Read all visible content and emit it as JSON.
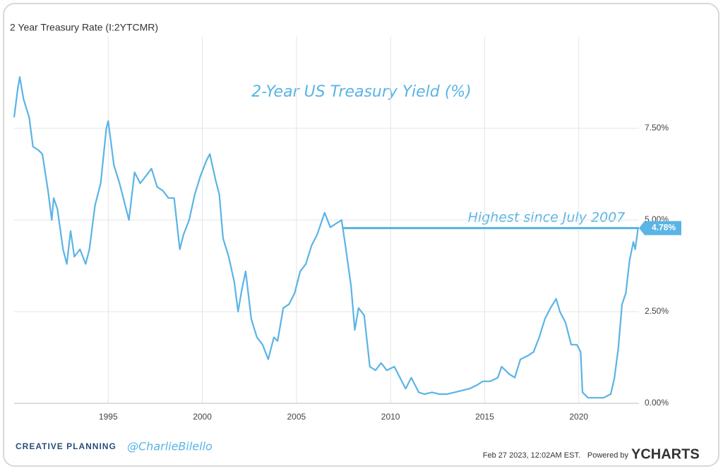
{
  "header": "2 Year Treasury Rate (I:2YTCMR)",
  "chart_data": {
    "type": "line",
    "title": "2-Year US Treasury Yield (%)",
    "annotation": "Highest since July 2007",
    "reference": {
      "value": 4.78,
      "label": "4.78%",
      "x_start": 2007.5
    },
    "xlim": [
      1990,
      2023.2
    ],
    "xticks": [
      1995,
      2000,
      2005,
      2010,
      2015,
      2020
    ],
    "ylim": [
      0,
      10
    ],
    "yticks": [
      {
        "value": 0,
        "label": "0.00%"
      },
      {
        "value": 2.5,
        "label": "2.50%"
      },
      {
        "value": 5,
        "label": "5.00%"
      },
      {
        "value": 7.5,
        "label": "7.50%"
      }
    ],
    "grid": true,
    "series": [
      {
        "name": "2 Year Treasury Rate",
        "color": "#5ab4e5",
        "x": [
          1990.0,
          1990.2,
          1990.3,
          1990.5,
          1990.8,
          1991.0,
          1991.3,
          1991.5,
          1991.8,
          1992.0,
          1992.1,
          1992.3,
          1992.6,
          1992.8,
          1993.0,
          1993.2,
          1993.5,
          1993.8,
          1994.0,
          1994.3,
          1994.6,
          1994.9,
          1995.0,
          1995.3,
          1995.6,
          1995.9,
          1996.1,
          1996.4,
          1996.7,
          1997.0,
          1997.3,
          1997.6,
          1997.9,
          1998.2,
          1998.5,
          1998.8,
          1999.0,
          1999.3,
          1999.6,
          1999.9,
          2000.2,
          2000.4,
          2000.7,
          2000.9,
          2001.1,
          2001.4,
          2001.7,
          2001.9,
          2002.1,
          2002.3,
          2002.6,
          2002.9,
          2003.2,
          2003.5,
          2003.8,
          2004.0,
          2004.3,
          2004.6,
          2004.9,
          2005.2,
          2005.5,
          2005.8,
          2006.1,
          2006.5,
          2006.8,
          2007.1,
          2007.4,
          2007.6,
          2007.9,
          2008.1,
          2008.3,
          2008.6,
          2008.9,
          2009.2,
          2009.5,
          2009.8,
          2010.2,
          2010.5,
          2010.8,
          2011.1,
          2011.5,
          2011.8,
          2012.2,
          2012.6,
          2013.0,
          2013.4,
          2013.8,
          2014.2,
          2014.6,
          2014.9,
          2015.3,
          2015.7,
          2015.9,
          2016.3,
          2016.6,
          2016.9,
          2017.3,
          2017.6,
          2017.9,
          2018.2,
          2018.5,
          2018.8,
          2019.0,
          2019.3,
          2019.6,
          2019.9,
          2020.1,
          2020.2,
          2020.5,
          2020.9,
          2021.3,
          2021.7,
          2021.9,
          2022.1,
          2022.3,
          2022.5,
          2022.7,
          2022.9,
          2023.0,
          2023.15
        ],
        "values": [
          7.8,
          8.6,
          8.9,
          8.3,
          7.8,
          7.0,
          6.9,
          6.8,
          5.8,
          5.0,
          5.6,
          5.3,
          4.2,
          3.8,
          4.7,
          4.0,
          4.2,
          3.8,
          4.2,
          5.4,
          6.0,
          7.5,
          7.7,
          6.5,
          6.0,
          5.4,
          5.0,
          6.3,
          6.0,
          6.2,
          6.4,
          5.9,
          5.8,
          5.6,
          5.6,
          4.2,
          4.6,
          5.0,
          5.7,
          6.2,
          6.6,
          6.8,
          6.1,
          5.7,
          4.5,
          4.0,
          3.3,
          2.5,
          3.1,
          3.6,
          2.3,
          1.8,
          1.6,
          1.2,
          1.8,
          1.7,
          2.6,
          2.7,
          3.0,
          3.6,
          3.8,
          4.3,
          4.6,
          5.2,
          4.8,
          4.9,
          5.0,
          4.3,
          3.2,
          2.0,
          2.6,
          2.4,
          1.0,
          0.9,
          1.1,
          0.9,
          1.0,
          0.7,
          0.4,
          0.7,
          0.3,
          0.25,
          0.3,
          0.25,
          0.25,
          0.3,
          0.35,
          0.4,
          0.5,
          0.6,
          0.6,
          0.7,
          1.0,
          0.8,
          0.7,
          1.2,
          1.3,
          1.4,
          1.8,
          2.3,
          2.6,
          2.85,
          2.5,
          2.2,
          1.6,
          1.6,
          1.4,
          0.3,
          0.15,
          0.15,
          0.15,
          0.25,
          0.7,
          1.5,
          2.7,
          3.0,
          3.9,
          4.4,
          4.2,
          4.78
        ]
      }
    ]
  },
  "footer": {
    "brand": "CREATIVE PLANNING",
    "handle": "@CharlieBilello",
    "timestamp": "Feb 27 2023, 12:02AM EST.",
    "powered": "Powered by",
    "logo": "YCHARTS"
  }
}
